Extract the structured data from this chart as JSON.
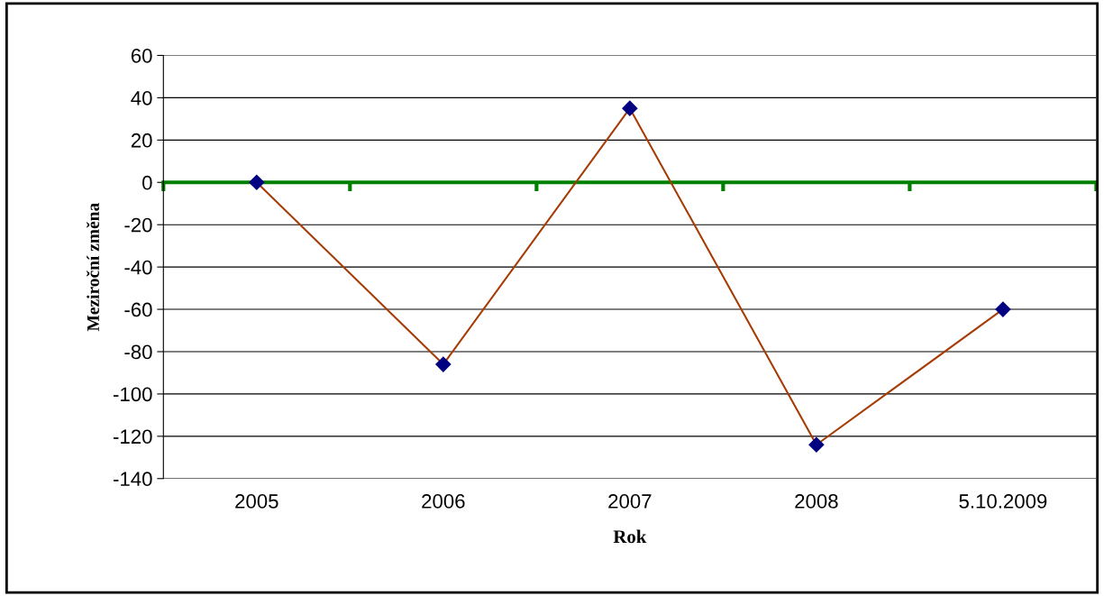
{
  "chart_data": {
    "type": "line",
    "xlabel": "Rok",
    "ylabel": "Meziroční změna",
    "categories": [
      "2005",
      "2006",
      "2007",
      "2008",
      "5.10.2009"
    ],
    "series": [
      {
        "color": "#a63c06",
        "values": [
          0,
          -86,
          35,
          -124,
          -60
        ]
      }
    ],
    "ylim": [
      -140,
      60
    ],
    "yticks": [
      -140,
      -120,
      -100,
      -80,
      -60,
      -40,
      -20,
      0,
      20,
      40,
      60
    ],
    "ref_lines": [
      {
        "axis": "y",
        "value": 0,
        "color": "#008000"
      }
    ],
    "grid": "y",
    "marker": "diamond",
    "line_style": "solid"
  }
}
